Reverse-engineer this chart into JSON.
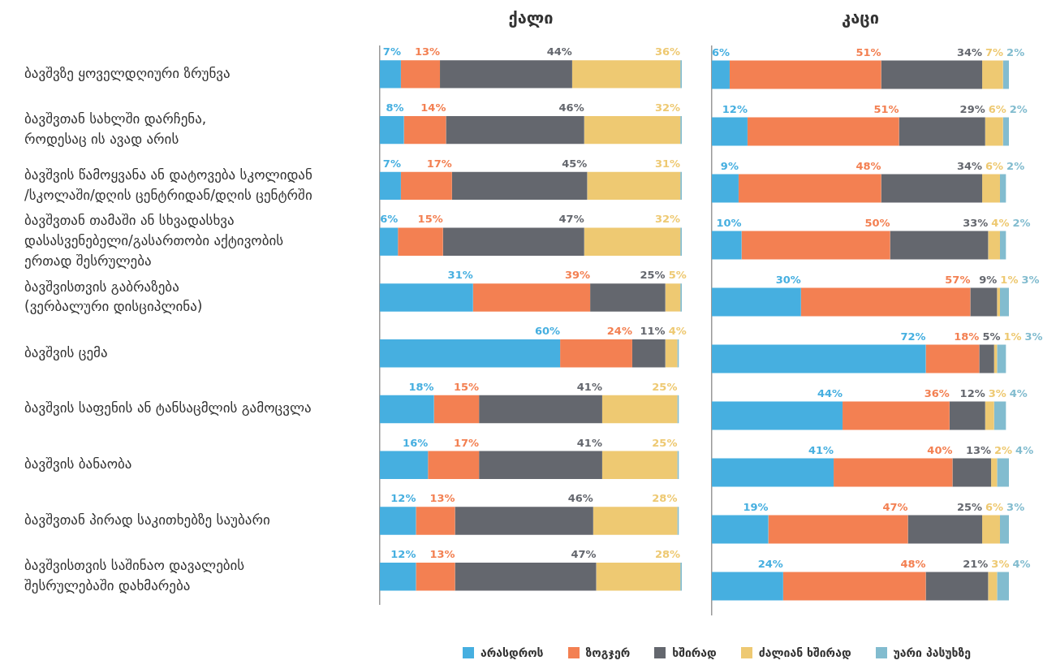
{
  "chart_data": [
    {
      "type": "bar",
      "title": "ქალი",
      "orientation": "horizontal",
      "stacked": true,
      "xlim": [
        0,
        100.5
      ],
      "tick_labels": "y",
      "legend": "bottom",
      "categories": [
        "ბავშვზე ყოველდღიური ზრუნვა",
        "ბავშვთან სახლში დარჩენა,\nროდესაც ის ავად არის",
        "ბავშვის წამოყვანა ან დატოვება სკოლიდან\n/სკოლაში/დღის ცენტრიდან/დღის ცენტრში",
        "ბავშვთან თამაში ან სხვადასხვა\nდასასვენებელი/გასართობი აქტივობის\nერთად შესრულება",
        "ბავშვისთვის გაბრაზება\n(ვერბალური დისციპლინა)",
        "ბავშვის ცემა",
        "ბავშვის საფენის ან ტანსაცმლის გამოცვლა",
        "ბავშვის ბანაობა",
        "ბავშვთან პირად საკითხებზე საუბარი",
        "ბავშვისთვის საშინაო დავალების\nშესრულებაში დახმარება"
      ],
      "series": [
        {
          "name": "არასდროს",
          "color": "#46afe0",
          "values": [
            7,
            8,
            7,
            6,
            31,
            60,
            18,
            16,
            12,
            12
          ],
          "value_labels": [
            "7%",
            "8%",
            "7%",
            "6%",
            "31%",
            "60%",
            "18%",
            "16%",
            "12%",
            "12%"
          ]
        },
        {
          "name": "ზოგჯერ",
          "color": "#f38052",
          "values": [
            13,
            14,
            17,
            15,
            39,
            24,
            15,
            17,
            13,
            13
          ],
          "value_labels": [
            "13%",
            "14%",
            "17%",
            "15%",
            "39%",
            "24%",
            "15%",
            "17%",
            "13%",
            "13%"
          ]
        },
        {
          "name": "ხშირად",
          "color": "#64676e",
          "values": [
            44,
            46,
            45,
            47,
            25,
            11,
            41,
            41,
            46,
            47
          ],
          "value_labels": [
            "44%",
            "46%",
            "45%",
            "47%",
            "25%",
            "11%",
            "41%",
            "41%",
            "46%",
            "47%"
          ]
        },
        {
          "name": "ძალიან ხშირად",
          "color": "#eec972",
          "values": [
            36,
            32,
            31,
            32,
            5,
            4,
            25,
            25,
            28,
            28
          ],
          "value_labels": [
            "36%",
            "32%",
            "31%",
            "32%",
            "5%",
            "4%",
            "25%",
            "25%",
            "28%",
            "28%"
          ]
        },
        {
          "name": "უარი პასუხზე",
          "color": "#82bccf",
          "values": [
            0.5,
            0.5,
            0.5,
            0.5,
            0.5,
            0.5,
            0.5,
            0.5,
            0.5,
            0.5
          ],
          "value_labels": [
            null,
            null,
            null,
            null,
            null,
            null,
            null,
            null,
            null,
            null
          ]
        }
      ]
    },
    {
      "type": "bar",
      "title": "კაცი",
      "orientation": "horizontal",
      "stacked": true,
      "xlim": [
        0,
        100
      ],
      "tick_labels": false,
      "categories": [
        null,
        null,
        null,
        null,
        null,
        null,
        null,
        null,
        null,
        null
      ],
      "series": [
        {
          "color": "#46afe0",
          "values": [
            6,
            12,
            9,
            10,
            30,
            72,
            44,
            41,
            19,
            24
          ],
          "value_labels": [
            "6%",
            "12%",
            "9%",
            "10%",
            "30%",
            "72%",
            "44%",
            "41%",
            "19%",
            "24%"
          ]
        },
        {
          "color": "#f38052",
          "values": [
            51,
            51,
            48,
            50,
            57,
            18,
            36,
            40,
            47,
            48
          ],
          "value_labels": [
            "51%",
            "51%",
            "48%",
            "50%",
            "57%",
            "18%",
            "36%",
            "40%",
            "47%",
            "48%"
          ]
        },
        {
          "color": "#64676e",
          "values": [
            34,
            29,
            34,
            33,
            9,
            5,
            12,
            13,
            25,
            21
          ],
          "value_labels": [
            "34%",
            "29%",
            "34%",
            "33%",
            "9%",
            "5%",
            "12%",
            "13%",
            "25%",
            "21%"
          ]
        },
        {
          "color": "#eec972",
          "values": [
            7,
            6,
            6,
            4,
            1,
            1,
            3,
            2,
            6,
            3
          ],
          "value_labels": [
            "7%",
            "6%",
            "6%",
            "4%",
            "1%",
            "1%",
            "3%",
            "2%",
            "6%",
            "3%"
          ]
        },
        {
          "color": "#82bccf",
          "values": [
            2,
            2,
            2,
            2,
            3,
            3,
            4,
            4,
            3,
            4
          ],
          "value_labels": [
            "2%",
            "2%",
            "2%",
            "2%",
            "3%",
            "3%",
            "4%",
            "4%",
            "3%",
            "4%"
          ]
        }
      ]
    }
  ]
}
